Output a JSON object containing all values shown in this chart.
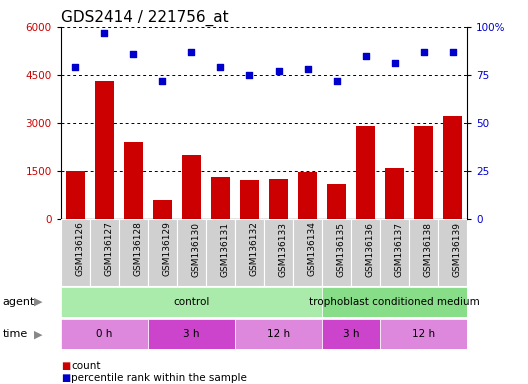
{
  "title": "GDS2414 / 221756_at",
  "samples": [
    "GSM136126",
    "GSM136127",
    "GSM136128",
    "GSM136129",
    "GSM136130",
    "GSM136131",
    "GSM136132",
    "GSM136133",
    "GSM136134",
    "GSM136135",
    "GSM136136",
    "GSM136137",
    "GSM136138",
    "GSM136139"
  ],
  "counts": [
    1500,
    4300,
    2400,
    600,
    2000,
    1300,
    1200,
    1250,
    1450,
    1100,
    2900,
    1600,
    2900,
    3200
  ],
  "percentile_ranks": [
    79,
    97,
    86,
    72,
    87,
    79,
    75,
    77,
    78,
    72,
    85,
    81,
    87,
    87
  ],
  "ylim_left": [
    0,
    6000
  ],
  "ylim_right": [
    0,
    100
  ],
  "yticks_left": [
    0,
    1500,
    3000,
    4500,
    6000
  ],
  "yticks_right": [
    0,
    25,
    50,
    75,
    100
  ],
  "ytick_labels_right": [
    "0",
    "25",
    "50",
    "75",
    "100%"
  ],
  "bar_color": "#cc0000",
  "dot_color": "#0000cc",
  "agent_groups": [
    {
      "label": "control",
      "start": 0,
      "end": 9,
      "color": "#aaeaaa"
    },
    {
      "label": "trophoblast conditioned medium",
      "start": 9,
      "end": 14,
      "color": "#88dd88"
    }
  ],
  "time_groups": [
    {
      "label": "0 h",
      "start": 0,
      "end": 3,
      "color": "#dd88dd"
    },
    {
      "label": "3 h",
      "start": 3,
      "end": 6,
      "color": "#cc44cc"
    },
    {
      "label": "12 h",
      "start": 6,
      "end": 9,
      "color": "#dd88dd"
    },
    {
      "label": "3 h",
      "start": 9,
      "end": 11,
      "color": "#cc44cc"
    },
    {
      "label": "12 h",
      "start": 11,
      "end": 14,
      "color": "#dd88dd"
    }
  ],
  "bar_edge_color": "none",
  "background_color": "#ffffff",
  "title_fontsize": 11,
  "tick_fontsize": 7.5,
  "sample_fontsize": 6.5,
  "group_fontsize": 7.5,
  "legend_fontsize": 7.5,
  "label_row_fontsize": 8
}
